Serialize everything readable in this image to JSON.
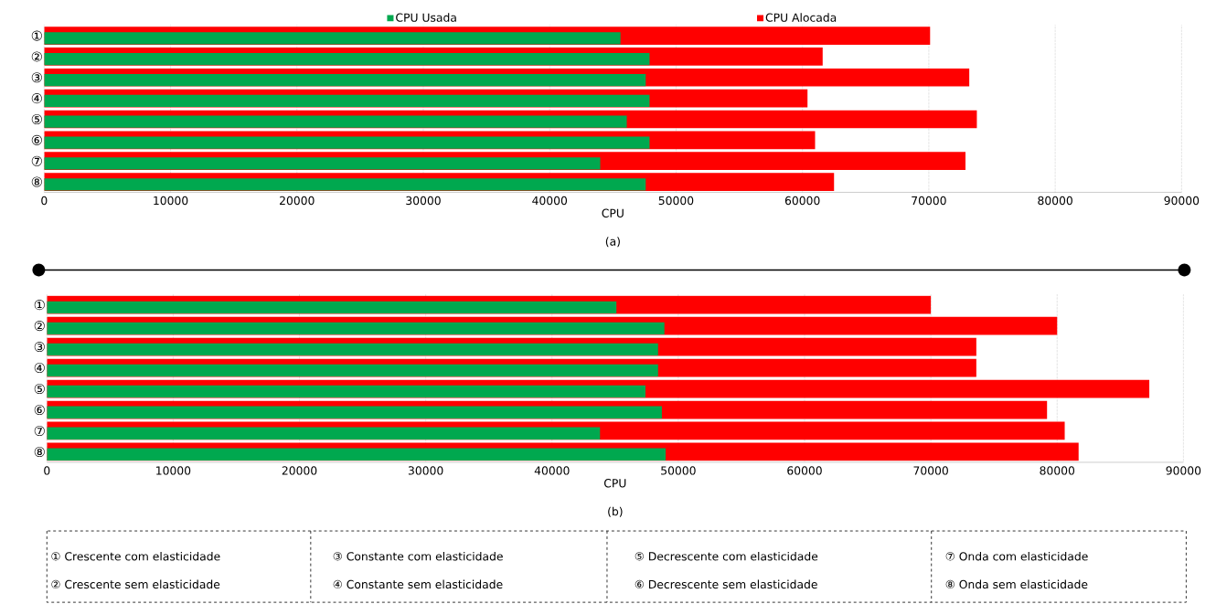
{
  "chart_data": [
    {
      "type": "bar",
      "orientation": "horizontal",
      "title": "(a)",
      "xlabel": "CPU",
      "categories": [
        "①",
        "②",
        "③",
        "④",
        "⑤",
        "⑥",
        "⑦",
        "⑧"
      ],
      "series": [
        {
          "name": "CPU Usada",
          "color": "#00a84f",
          "values": [
            45600,
            47900,
            47600,
            47900,
            46100,
            47900,
            44000,
            47600
          ]
        },
        {
          "name": "CPU Alocada",
          "color": "#ff0000",
          "values": [
            70100,
            61600,
            73200,
            60400,
            73800,
            61000,
            72900,
            62500
          ]
        }
      ],
      "xlim": [
        0,
        90000
      ],
      "xticks": [
        0,
        10000,
        20000,
        30000,
        40000,
        50000,
        60000,
        70000,
        80000,
        90000
      ],
      "grid": "x",
      "legend": "top"
    },
    {
      "type": "bar",
      "orientation": "horizontal",
      "title": "(b)",
      "xlabel": "CPU",
      "categories": [
        "①",
        "②",
        "③",
        "④",
        "⑤",
        "⑥",
        "⑦",
        "⑧"
      ],
      "series": [
        {
          "color": "#00a84f",
          "values": [
            45100,
            48900,
            48400,
            48400,
            47400,
            48700,
            43800,
            49000
          ]
        },
        {
          "color": "#ff0000",
          "values": [
            70000,
            80000,
            73600,
            73600,
            87300,
            79200,
            80600,
            81700
          ]
        }
      ],
      "xlim": [
        0,
        90000
      ],
      "xticks": [
        0,
        10000,
        20000,
        30000,
        40000,
        50000,
        60000,
        70000,
        80000,
        90000
      ],
      "grid": "x",
      "annotations": [
        "① Crescente com elasticidade",
        "② Crescente sem elasticidade",
        "③ Constante com elasticidade",
        "④ Constante sem elasticidade",
        "⑤ Decrescente com elasticidade",
        "⑥ Decrescente sem elasticidade",
        "⑦ Onda com elasticidade",
        "⑧ Onda sem elasticidade"
      ]
    }
  ]
}
